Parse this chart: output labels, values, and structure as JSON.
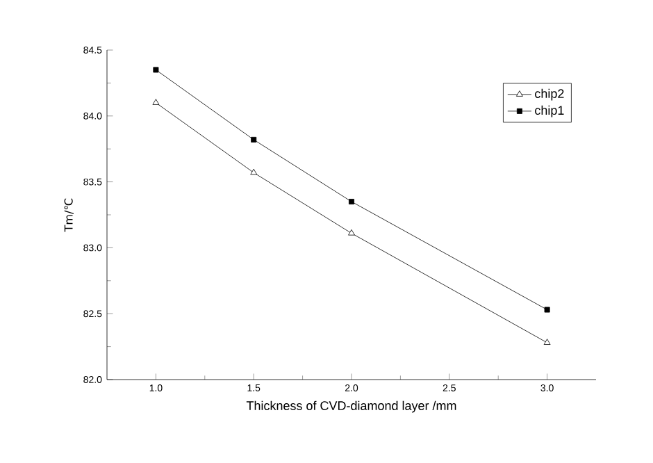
{
  "chart_data": {
    "type": "line",
    "xlabel": "Thickness  of  CVD-diamond layer /mm",
    "ylabel": "Tm/℃",
    "x": [
      1.0,
      1.5,
      2.0,
      3.0
    ],
    "series": [
      {
        "name": "chip2",
        "color": "#000000",
        "marker": "triangle",
        "values": [
          84.1,
          83.57,
          83.11,
          82.28
        ]
      },
      {
        "name": "chip1",
        "color": "#000000",
        "marker": "square",
        "values": [
          84.35,
          83.82,
          83.35,
          82.53
        ]
      }
    ],
    "xlim": [
      0.75,
      3.25
    ],
    "xticks": [
      {
        "value": 1,
        "label": "1.0"
      },
      1.5,
      {
        "value": 2,
        "label": "2.0"
      },
      2.5,
      {
        "value": 3,
        "label": "3.0"
      }
    ],
    "ylim": [
      82.0,
      84.5
    ],
    "yticks": [
      {
        "value": 82,
        "label": "82.0"
      },
      82.5,
      {
        "value": 83,
        "label": "83.0"
      },
      83.5,
      {
        "value": 84,
        "label": "84.0"
      },
      84.5
    ],
    "grid": false,
    "legend": "top right",
    "line_style": "solid"
  }
}
